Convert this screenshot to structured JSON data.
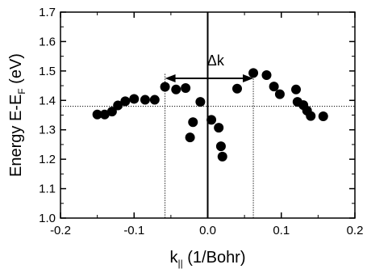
{
  "chart_data": {
    "type": "scatter",
    "xlim": [
      -0.2,
      0.2
    ],
    "ylim": [
      1.0,
      1.7
    ],
    "x_ticks": [
      -0.2,
      -0.1,
      0.0,
      0.1,
      0.2
    ],
    "x_tick_labels": [
      "-0.2",
      "-0.1",
      "0.0",
      "0.1",
      "0.2"
    ],
    "y_ticks": [
      1.0,
      1.1,
      1.2,
      1.3,
      1.4,
      1.5,
      1.6,
      1.7
    ],
    "y_tick_labels": [
      "1.0",
      "1.1",
      "1.2",
      "1.3",
      "1.4",
      "1.5",
      "1.6",
      "1.7"
    ],
    "xlabel": {
      "main": "k",
      "sub": "||",
      "rest": " (1/Bohr)"
    },
    "ylabel": {
      "main": "Energy  E-E",
      "sub": "F",
      "rest": " (eV)"
    },
    "grid": false,
    "reference_lines": {
      "horizontal_dotted_y": 1.38,
      "vertical_dotted_x": [
        -0.058,
        0.062
      ],
      "vertical_solid_x": 0.0
    },
    "annotation": {
      "text": "Δk",
      "arrow_from_x": -0.058,
      "arrow_to_x": 0.062,
      "arrow_y": 1.475,
      "label_y": 1.535
    },
    "series": [
      {
        "color": "#000000",
        "points": [
          [
            -0.15,
            1.352
          ],
          [
            -0.14,
            1.352
          ],
          [
            -0.13,
            1.362
          ],
          [
            -0.122,
            1.383
          ],
          [
            -0.112,
            1.397
          ],
          [
            -0.1,
            1.405
          ],
          [
            -0.085,
            1.402
          ],
          [
            -0.072,
            1.402
          ],
          [
            -0.058,
            1.446
          ],
          [
            -0.043,
            1.437
          ],
          [
            -0.03,
            1.442
          ],
          [
            -0.024,
            1.274
          ],
          [
            -0.02,
            1.326
          ],
          [
            -0.01,
            1.395
          ],
          [
            0.005,
            1.334
          ],
          [
            0.015,
            1.307
          ],
          [
            0.018,
            1.244
          ],
          [
            0.02,
            1.209
          ],
          [
            0.04,
            1.44
          ],
          [
            0.062,
            1.493
          ],
          [
            0.08,
            1.486
          ],
          [
            0.09,
            1.447
          ],
          [
            0.098,
            1.421
          ],
          [
            0.12,
            1.437
          ],
          [
            0.122,
            1.395
          ],
          [
            0.13,
            1.384
          ],
          [
            0.135,
            1.365
          ],
          [
            0.14,
            1.347
          ],
          [
            0.157,
            1.346
          ]
        ]
      }
    ]
  }
}
